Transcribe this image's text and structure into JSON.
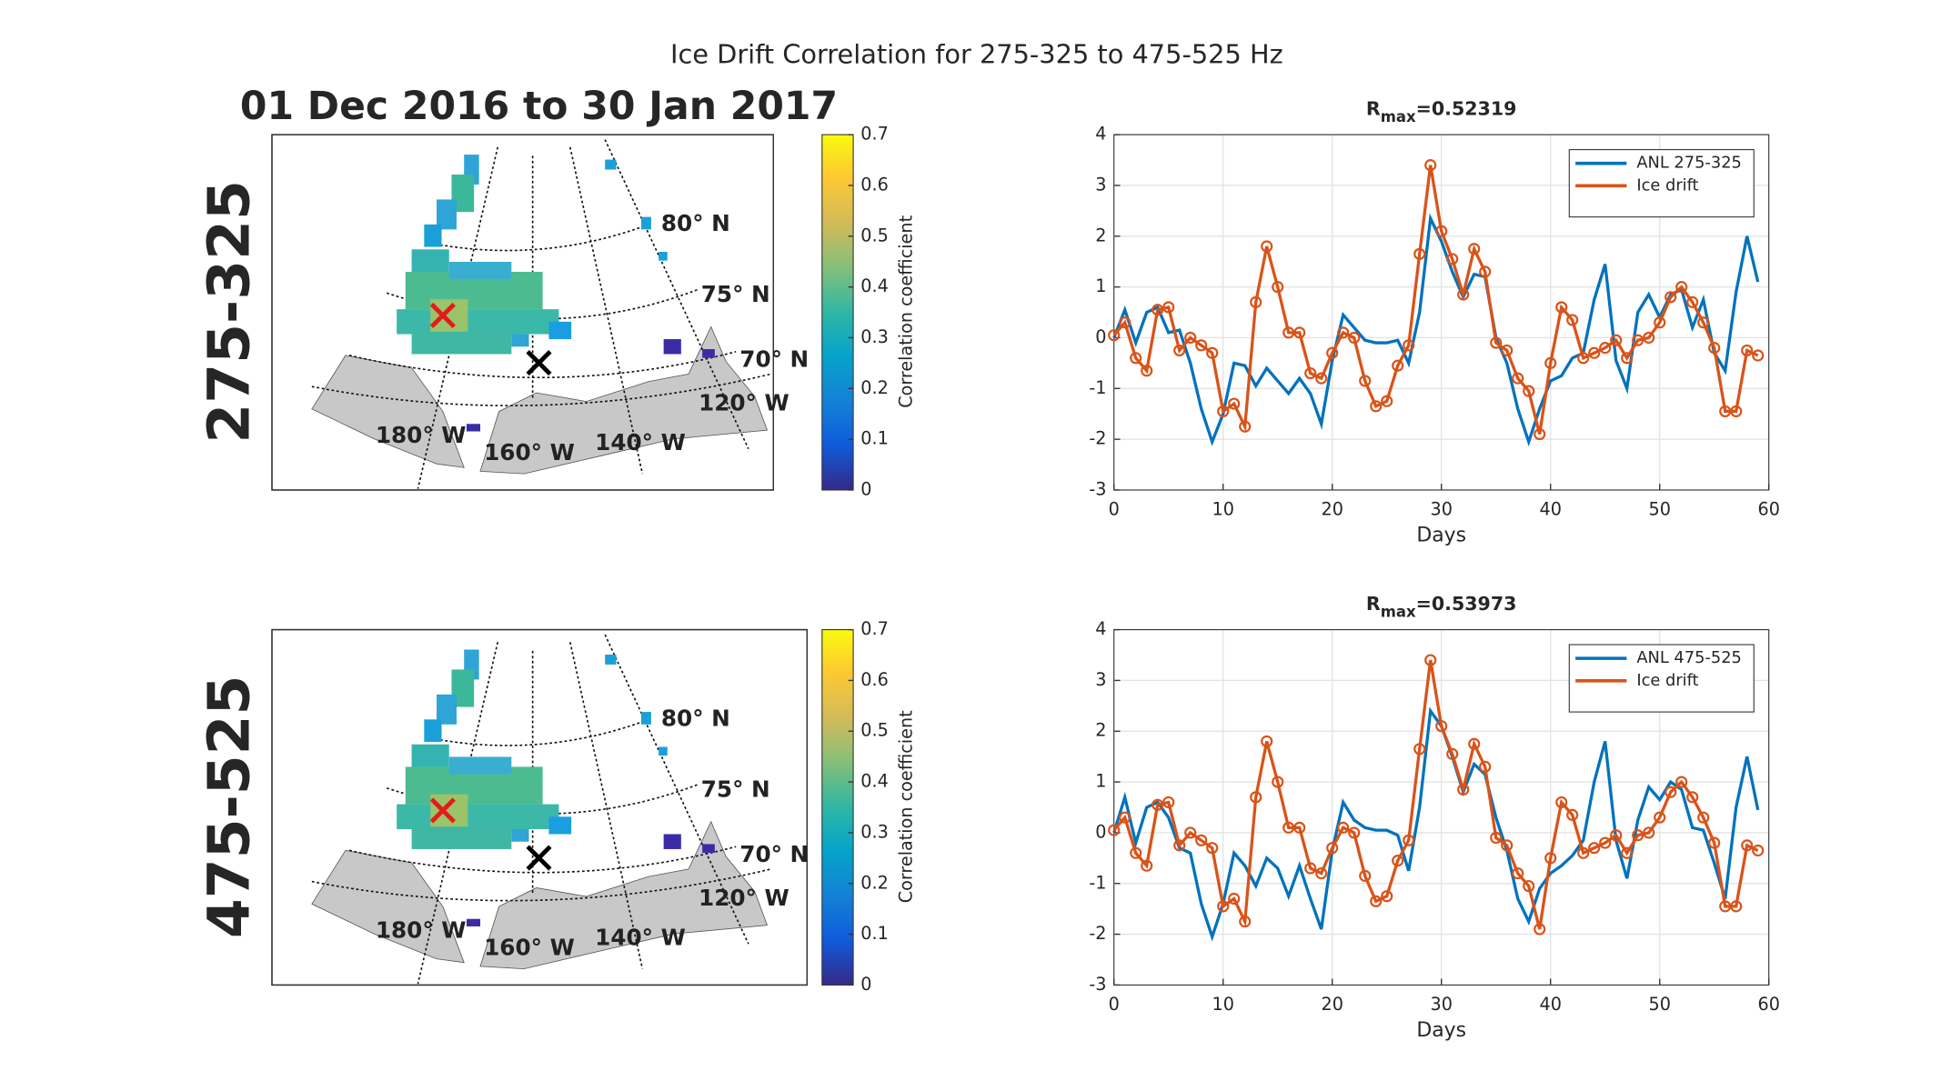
{
  "title": "Ice Drift Correlation for 275-325 to 475-525 Hz",
  "date_range": "01 Dec 2016 to 30 Jan 2017",
  "maps": [
    {
      "row_label": "275-325",
      "colorbar_label": "Correlation coefficient",
      "colorbar_lim": [
        0,
        0.7
      ],
      "colorbar_ticks": [
        0,
        0.1,
        0.2,
        0.3,
        0.4,
        0.5,
        0.6,
        0.7
      ],
      "grid_labels": [
        "80° N",
        "75° N",
        "70° N",
        "120° W",
        "180° W",
        "160° W",
        "140° W"
      ]
    },
    {
      "row_label": "475-525",
      "colorbar_label": "Correlation coefficient",
      "colorbar_lim": [
        0,
        0.7
      ],
      "colorbar_ticks": [
        0,
        0.1,
        0.2,
        0.3,
        0.4,
        0.5,
        0.6,
        0.7
      ],
      "grid_labels": [
        "80° N",
        "75° N",
        "70° N",
        "120° W",
        "180° W",
        "160° W",
        "140° W"
      ]
    }
  ],
  "chart_data": [
    {
      "type": "line",
      "title_main": "R",
      "title_sub": "max",
      "title_value": "=0.52319",
      "xlabel": "Days",
      "x": [
        0,
        1,
        2,
        3,
        4,
        5,
        6,
        7,
        8,
        9,
        10,
        11,
        12,
        13,
        14,
        15,
        16,
        17,
        18,
        19,
        20,
        21,
        22,
        23,
        24,
        25,
        26,
        27,
        28,
        29,
        30,
        31,
        32,
        33,
        34,
        35,
        36,
        37,
        38,
        39,
        40,
        41,
        42,
        43,
        44,
        45,
        46,
        47,
        48,
        49,
        50,
        51,
        52,
        53,
        54,
        55,
        56,
        57,
        58,
        59
      ],
      "xlim": [
        0,
        60
      ],
      "xticks": [
        0,
        10,
        20,
        30,
        40,
        50,
        60
      ],
      "ylim": [
        -3,
        4
      ],
      "yticks": [
        -3,
        -2,
        -1,
        0,
        1,
        2,
        3,
        4
      ],
      "grid": true,
      "legend": "upper right",
      "series": [
        {
          "name": "ANL 275-325",
          "color": "#0072bd",
          "markers": false,
          "values": [
            0.0,
            0.55,
            -0.1,
            0.5,
            0.6,
            0.1,
            0.15,
            -0.5,
            -1.4,
            -2.05,
            -1.5,
            -0.5,
            -0.55,
            -0.95,
            -0.6,
            -0.85,
            -1.1,
            -0.8,
            -1.1,
            -1.7,
            -0.45,
            0.45,
            0.2,
            -0.05,
            -0.1,
            -0.1,
            -0.05,
            -0.5,
            0.5,
            2.35,
            1.9,
            1.3,
            0.8,
            1.25,
            1.2,
            0.0,
            -0.5,
            -1.4,
            -2.05,
            -1.4,
            -0.85,
            -0.75,
            -0.4,
            -0.3,
            0.75,
            1.45,
            -0.45,
            -1.0,
            0.5,
            0.85,
            0.4,
            0.85,
            0.95,
            0.2,
            0.75,
            -0.3,
            -0.65,
            0.9,
            2.0,
            1.1
          ]
        },
        {
          "name": "Ice drift",
          "color": "#d95319",
          "markers": true,
          "values": [
            0.05,
            0.3,
            -0.4,
            -0.65,
            0.55,
            0.6,
            -0.25,
            0.0,
            -0.15,
            -0.3,
            -1.45,
            -1.3,
            -1.75,
            0.7,
            1.8,
            1.0,
            0.1,
            0.1,
            -0.7,
            -0.8,
            -0.3,
            0.1,
            0.0,
            -0.85,
            -1.35,
            -1.25,
            -0.55,
            -0.15,
            1.65,
            3.4,
            2.1,
            1.55,
            0.85,
            1.75,
            1.3,
            -0.1,
            -0.25,
            -0.8,
            -1.05,
            -1.9,
            -0.5,
            0.6,
            0.35,
            -0.4,
            -0.3,
            -0.2,
            -0.05,
            -0.4,
            -0.05,
            0.0,
            0.3,
            0.8,
            1.0,
            0.7,
            0.3,
            -0.2,
            -1.45,
            -1.45,
            -0.25,
            -0.35
          ]
        }
      ]
    },
    {
      "type": "line",
      "title_main": "R",
      "title_sub": "max",
      "title_value": "=0.53973",
      "xlabel": "Days",
      "x": [
        0,
        1,
        2,
        3,
        4,
        5,
        6,
        7,
        8,
        9,
        10,
        11,
        12,
        13,
        14,
        15,
        16,
        17,
        18,
        19,
        20,
        21,
        22,
        23,
        24,
        25,
        26,
        27,
        28,
        29,
        30,
        31,
        32,
        33,
        34,
        35,
        36,
        37,
        38,
        39,
        40,
        41,
        42,
        43,
        44,
        45,
        46,
        47,
        48,
        49,
        50,
        51,
        52,
        53,
        54,
        55,
        56,
        57,
        58,
        59
      ],
      "xlim": [
        0,
        60
      ],
      "xticks": [
        0,
        10,
        20,
        30,
        40,
        50,
        60
      ],
      "ylim": [
        -3,
        4
      ],
      "yticks": [
        -3,
        -2,
        -1,
        0,
        1,
        2,
        3,
        4
      ],
      "grid": true,
      "legend": "upper right",
      "series": [
        {
          "name": "ANL 475-525",
          "color": "#0072bd",
          "markers": false,
          "values": [
            0.0,
            0.7,
            -0.2,
            0.5,
            0.6,
            0.3,
            -0.3,
            -0.4,
            -1.4,
            -2.05,
            -1.4,
            -0.4,
            -0.65,
            -1.05,
            -0.5,
            -0.7,
            -1.25,
            -0.65,
            -1.3,
            -1.9,
            -0.35,
            0.6,
            0.25,
            0.1,
            0.05,
            0.05,
            -0.05,
            -0.75,
            0.5,
            2.4,
            2.1,
            1.5,
            0.8,
            1.35,
            1.15,
            0.3,
            -0.35,
            -1.3,
            -1.75,
            -1.1,
            -0.8,
            -0.65,
            -0.45,
            -0.15,
            1.0,
            1.8,
            -0.15,
            -0.9,
            0.25,
            0.9,
            0.65,
            1.0,
            0.85,
            0.1,
            0.05,
            -0.6,
            -1.3,
            0.5,
            1.5,
            0.45
          ]
        },
        {
          "name": "Ice drift",
          "color": "#d95319",
          "markers": true,
          "values": [
            0.05,
            0.3,
            -0.4,
            -0.65,
            0.55,
            0.6,
            -0.25,
            0.0,
            -0.15,
            -0.3,
            -1.45,
            -1.3,
            -1.75,
            0.7,
            1.8,
            1.0,
            0.1,
            0.1,
            -0.7,
            -0.8,
            -0.3,
            0.1,
            0.0,
            -0.85,
            -1.35,
            -1.25,
            -0.55,
            -0.15,
            1.65,
            3.4,
            2.1,
            1.55,
            0.85,
            1.75,
            1.3,
            -0.1,
            -0.25,
            -0.8,
            -1.05,
            -1.9,
            -0.5,
            0.6,
            0.35,
            -0.4,
            -0.3,
            -0.2,
            -0.05,
            -0.4,
            -0.05,
            0.0,
            0.3,
            0.8,
            1.0,
            0.7,
            0.3,
            -0.2,
            -1.45,
            -1.45,
            -0.25,
            -0.35
          ]
        }
      ]
    }
  ]
}
